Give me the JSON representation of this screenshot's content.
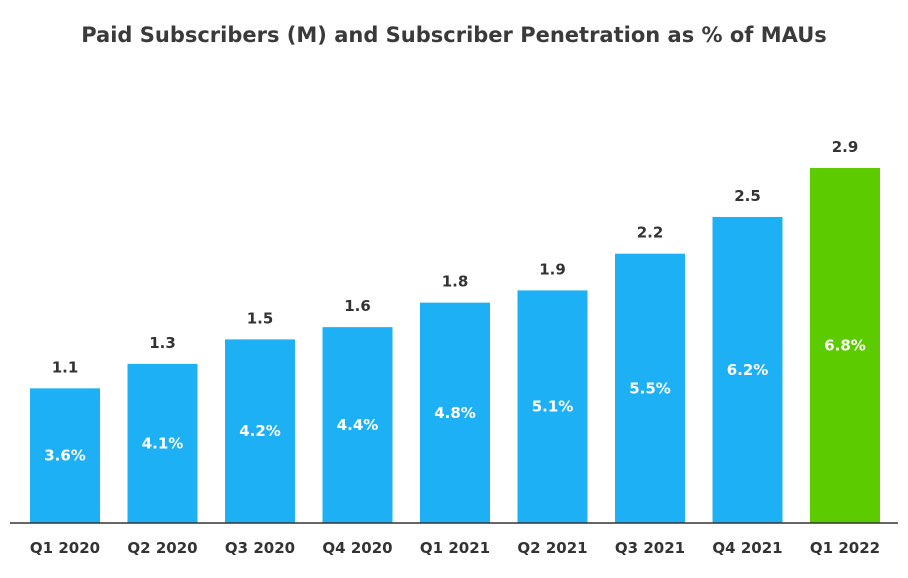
{
  "chart_data": {
    "type": "bar",
    "title": "Paid Subscribers (M) and Subscriber Penetration as % of MAUs",
    "categories": [
      "Q1 2020",
      "Q2 2020",
      "Q3 2020",
      "Q4 2020",
      "Q1 2021",
      "Q2 2021",
      "Q3 2021",
      "Q4 2021",
      "Q1 2022"
    ],
    "series": [
      {
        "name": "",
        "values": [
          1.1,
          1.3,
          1.5,
          1.6,
          1.8,
          1.9,
          2.2,
          2.5,
          2.9
        ],
        "labels": [
          "1.1",
          "1.3",
          "1.5",
          "1.6",
          "1.8",
          "1.9",
          "2.2",
          "2.5",
          "2.9"
        ]
      }
    ],
    "penetration_labels": [
      "3.6%",
      "4.1%",
      "4.2%",
      "4.4%",
      "4.8%",
      "5.1%",
      "5.5%",
      "6.2%",
      "6.8%"
    ],
    "ylim": [
      0,
      2.9
    ],
    "grid": false,
    "colors": {
      "default": "#1eb0f5",
      "highlight": "#5ccc00",
      "axis": "#333333"
    },
    "highlight_index": 8
  }
}
